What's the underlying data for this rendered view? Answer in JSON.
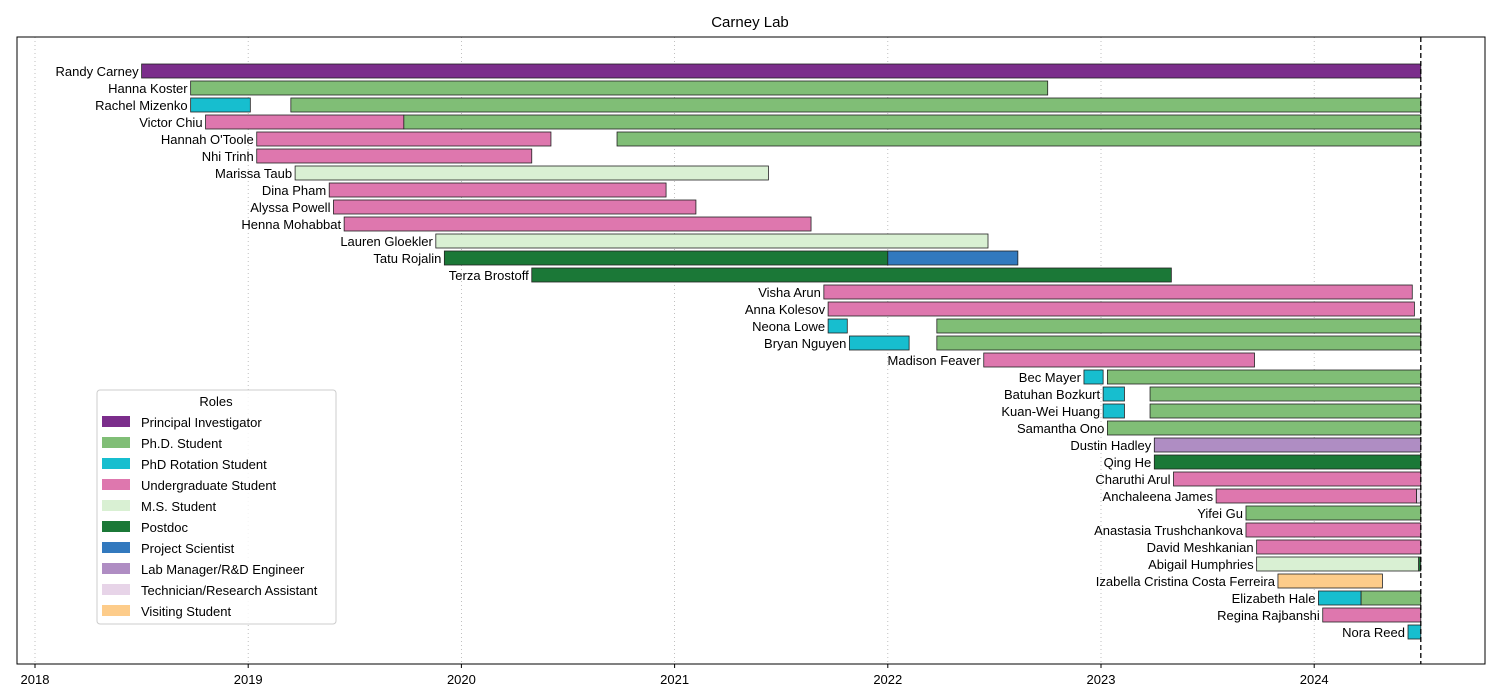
{
  "chart_data": {
    "type": "bar",
    "orientation": "horizontal-timeline",
    "title": "Carney Lab",
    "xlabel": "",
    "ylabel": "",
    "x_ticks": [
      "2018",
      "2019",
      "2020",
      "2021",
      "2022",
      "2023",
      "2024"
    ],
    "xlim": [
      2017.92,
      2024.8
    ],
    "grid": "vertical dotted",
    "reference_line": {
      "x": 2024.5,
      "style": "dashed"
    },
    "legend": {
      "title": "Roles",
      "placement": "lower-left"
    },
    "roles": [
      {
        "key": "pi",
        "label": "Principal Investigator",
        "color": "#7b2d8b"
      },
      {
        "key": "phd",
        "label": "Ph.D. Student",
        "color": "#80be76"
      },
      {
        "key": "rot",
        "label": "PhD Rotation Student",
        "color": "#17becf"
      },
      {
        "key": "ug",
        "label": "Undergraduate Student",
        "color": "#de77ae"
      },
      {
        "key": "ms",
        "label": "M.S. Student",
        "color": "#d9f0d3"
      },
      {
        "key": "pd",
        "label": "Postdoc",
        "color": "#1b7837"
      },
      {
        "key": "ps",
        "label": "Project Scientist",
        "color": "#3279be"
      },
      {
        "key": "lm",
        "label": "Lab Manager/R&D Engineer",
        "color": "#af8dc3"
      },
      {
        "key": "tech",
        "label": "Technician/Research Assistant",
        "color": "#e7d4e8"
      },
      {
        "key": "vis",
        "label": "Visiting Student",
        "color": "#fdcc8a"
      }
    ],
    "members": [
      {
        "name": "Randy Carney",
        "segments": [
          {
            "role": "pi",
            "start": 2018.5,
            "end": 2024.5
          }
        ]
      },
      {
        "name": "Hanna Koster",
        "segments": [
          {
            "role": "phd",
            "start": 2018.73,
            "end": 2022.75
          }
        ]
      },
      {
        "name": "Rachel Mizenko",
        "segments": [
          {
            "role": "rot",
            "start": 2018.73,
            "end": 2019.01
          },
          {
            "role": "phd",
            "start": 2019.2,
            "end": 2024.5
          }
        ]
      },
      {
        "name": "Victor Chiu",
        "segments": [
          {
            "role": "ug",
            "start": 2018.8,
            "end": 2019.73
          },
          {
            "role": "phd",
            "start": 2019.73,
            "end": 2024.5
          }
        ]
      },
      {
        "name": "Hannah O'Toole",
        "segments": [
          {
            "role": "ug",
            "start": 2019.04,
            "end": 2020.42
          },
          {
            "role": "phd",
            "start": 2020.73,
            "end": 2024.5
          }
        ]
      },
      {
        "name": "Nhi Trinh",
        "segments": [
          {
            "role": "ug",
            "start": 2019.04,
            "end": 2020.33
          }
        ]
      },
      {
        "name": "Marissa Taub",
        "segments": [
          {
            "role": "ms",
            "start": 2019.22,
            "end": 2021.44
          }
        ]
      },
      {
        "name": "Dina Pham",
        "segments": [
          {
            "role": "ug",
            "start": 2019.38,
            "end": 2020.96
          }
        ]
      },
      {
        "name": "Alyssa Powell",
        "segments": [
          {
            "role": "ug",
            "start": 2019.4,
            "end": 2021.1
          }
        ]
      },
      {
        "name": "Henna Mohabbat",
        "segments": [
          {
            "role": "ug",
            "start": 2019.45,
            "end": 2021.64
          }
        ]
      },
      {
        "name": "Lauren Gloekler",
        "segments": [
          {
            "role": "ms",
            "start": 2019.88,
            "end": 2022.47
          }
        ]
      },
      {
        "name": "Tatu Rojalin",
        "segments": [
          {
            "role": "pd",
            "start": 2019.92,
            "end": 2022.0
          },
          {
            "role": "ps",
            "start": 2022.0,
            "end": 2022.61
          }
        ]
      },
      {
        "name": "Terza Brostoff",
        "segments": [
          {
            "role": "pd",
            "start": 2020.33,
            "end": 2023.33
          }
        ]
      },
      {
        "name": "Visha Arun",
        "segments": [
          {
            "role": "ug",
            "start": 2021.7,
            "end": 2024.46
          }
        ]
      },
      {
        "name": "Anna Kolesov",
        "segments": [
          {
            "role": "ug",
            "start": 2021.72,
            "end": 2024.47
          }
        ]
      },
      {
        "name": "Neona Lowe",
        "segments": [
          {
            "role": "rot",
            "start": 2021.72,
            "end": 2021.81
          },
          {
            "role": "phd",
            "start": 2022.23,
            "end": 2024.5
          }
        ]
      },
      {
        "name": "Bryan Nguyen",
        "segments": [
          {
            "role": "rot",
            "start": 2021.82,
            "end": 2022.1
          },
          {
            "role": "phd",
            "start": 2022.23,
            "end": 2024.5
          }
        ]
      },
      {
        "name": "Madison Feaver",
        "segments": [
          {
            "role": "ug",
            "start": 2022.45,
            "end": 2023.72
          }
        ]
      },
      {
        "name": "Bec Mayer",
        "segments": [
          {
            "role": "rot",
            "start": 2022.92,
            "end": 2023.01
          },
          {
            "role": "phd",
            "start": 2023.03,
            "end": 2024.5
          }
        ]
      },
      {
        "name": "Batuhan Bozkurt",
        "segments": [
          {
            "role": "rot",
            "start": 2023.01,
            "end": 2023.11
          },
          {
            "role": "phd",
            "start": 2023.23,
            "end": 2024.5
          }
        ]
      },
      {
        "name": "Kuan-Wei Huang",
        "segments": [
          {
            "role": "rot",
            "start": 2023.01,
            "end": 2023.11
          },
          {
            "role": "phd",
            "start": 2023.23,
            "end": 2024.5
          }
        ]
      },
      {
        "name": "Samantha Ono",
        "segments": [
          {
            "role": "phd",
            "start": 2023.03,
            "end": 2024.5
          }
        ]
      },
      {
        "name": "Dustin Hadley",
        "segments": [
          {
            "role": "lm",
            "start": 2023.25,
            "end": 2024.5
          }
        ]
      },
      {
        "name": "Qing He",
        "segments": [
          {
            "role": "pd",
            "start": 2023.25,
            "end": 2024.5
          }
        ]
      },
      {
        "name": "Charuthi Arul",
        "segments": [
          {
            "role": "ug",
            "start": 2023.34,
            "end": 2024.5
          }
        ]
      },
      {
        "name": "Anchaleena James",
        "segments": [
          {
            "role": "ug",
            "start": 2023.54,
            "end": 2024.48
          },
          {
            "role": "tech",
            "start": 2024.48,
            "end": 2024.5
          }
        ]
      },
      {
        "name": "Yifei Gu",
        "segments": [
          {
            "role": "phd",
            "start": 2023.68,
            "end": 2024.5
          }
        ]
      },
      {
        "name": "Anastasia Trushchankova",
        "segments": [
          {
            "role": "ug",
            "start": 2023.68,
            "end": 2024.5
          }
        ]
      },
      {
        "name": "David Meshkanian",
        "segments": [
          {
            "role": "ug",
            "start": 2023.73,
            "end": 2024.5
          }
        ]
      },
      {
        "name": "Abigail Humphries",
        "segments": [
          {
            "role": "ms",
            "start": 2023.73,
            "end": 2024.49
          },
          {
            "role": "pd",
            "start": 2024.49,
            "end": 2024.5
          }
        ]
      },
      {
        "name": "Izabella Cristina Costa Ferreira",
        "segments": [
          {
            "role": "vis",
            "start": 2023.83,
            "end": 2024.32
          }
        ]
      },
      {
        "name": "Elizabeth Hale",
        "segments": [
          {
            "role": "rot",
            "start": 2024.02,
            "end": 2024.22
          },
          {
            "role": "phd",
            "start": 2024.22,
            "end": 2024.5
          }
        ]
      },
      {
        "name": "Regina Rajbanshi",
        "segments": [
          {
            "role": "ug",
            "start": 2024.04,
            "end": 2024.5
          }
        ]
      },
      {
        "name": "Nora Reed",
        "segments": [
          {
            "role": "rot",
            "start": 2024.44,
            "end": 2024.5
          }
        ]
      }
    ]
  }
}
